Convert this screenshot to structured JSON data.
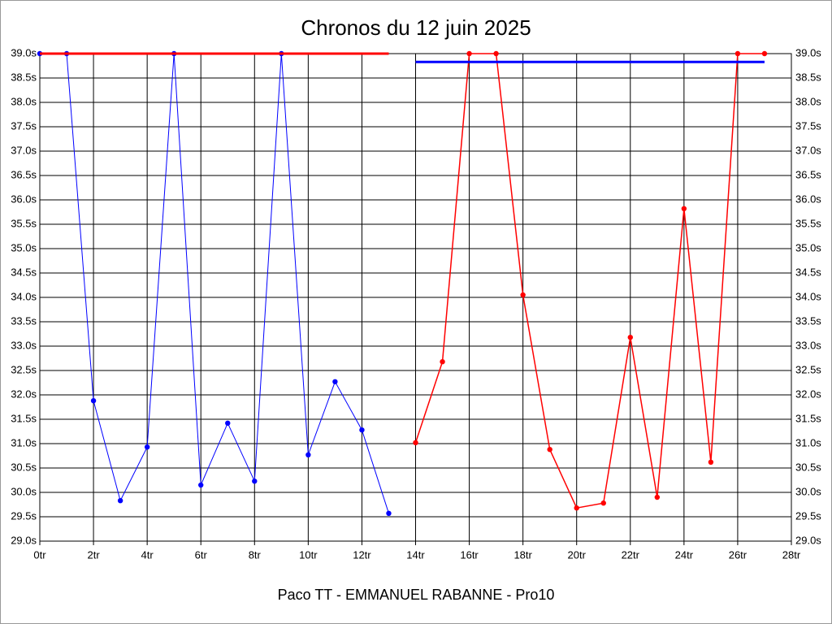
{
  "chart_data": {
    "type": "line",
    "title": "Chronos du 12 juin 2025",
    "xlabel": "Paco TT - EMMANUEL RABANNE - Pro10",
    "xlim": [
      0,
      28
    ],
    "xticks": [
      {
        "value": 0,
        "label": "0tr"
      },
      {
        "value": 2,
        "label": "2tr"
      },
      {
        "value": 4,
        "label": "4tr"
      },
      {
        "value": 6,
        "label": "6tr"
      },
      {
        "value": 8,
        "label": "8tr"
      },
      {
        "value": 10,
        "label": "10tr"
      },
      {
        "value": 12,
        "label": "12tr"
      },
      {
        "value": 14,
        "label": "14tr"
      },
      {
        "value": 16,
        "label": "16tr"
      },
      {
        "value": 18,
        "label": "18tr"
      },
      {
        "value": 20,
        "label": "20tr"
      },
      {
        "value": 22,
        "label": "22tr"
      },
      {
        "value": 24,
        "label": "24tr"
      },
      {
        "value": 26,
        "label": "26tr"
      },
      {
        "value": 28,
        "label": "28tr"
      }
    ],
    "ylim": [
      29.0,
      39.0
    ],
    "yticks": [
      {
        "value": 29.0,
        "label": "29.0s"
      },
      {
        "value": 29.5,
        "label": "29.5s"
      },
      {
        "value": 30.0,
        "label": "30.0s"
      },
      {
        "value": 30.5,
        "label": "30.5s"
      },
      {
        "value": 31.0,
        "label": "31.0s"
      },
      {
        "value": 31.5,
        "label": "31.5s"
      },
      {
        "value": 32.0,
        "label": "32.0s"
      },
      {
        "value": 32.5,
        "label": "32.5s"
      },
      {
        "value": 33.0,
        "label": "33.0s"
      },
      {
        "value": 33.5,
        "label": "33.5s"
      },
      {
        "value": 34.0,
        "label": "34.0s"
      },
      {
        "value": 34.5,
        "label": "34.5s"
      },
      {
        "value": 35.0,
        "label": "35.0s"
      },
      {
        "value": 35.5,
        "label": "35.5s"
      },
      {
        "value": 36.0,
        "label": "36.0s"
      },
      {
        "value": 36.5,
        "label": "36.5s"
      },
      {
        "value": 37.0,
        "label": "37.0s"
      },
      {
        "value": 37.5,
        "label": "37.5s"
      },
      {
        "value": 38.0,
        "label": "38.0s"
      },
      {
        "value": 38.5,
        "label": "38.5s"
      },
      {
        "value": 39.0,
        "label": "39.0s"
      }
    ],
    "grid": true,
    "series": [
      {
        "color": "#0000ff",
        "x": [
          0,
          1,
          2,
          3,
          4,
          5,
          6,
          7,
          8,
          9,
          10,
          11,
          12,
          13
        ],
        "values": [
          39.0,
          39.0,
          31.88,
          29.83,
          30.93,
          39.0,
          30.15,
          31.42,
          30.23,
          39.0,
          30.77,
          32.27,
          31.28,
          29.57
        ]
      },
      {
        "color": "#ff0000",
        "x": [
          14,
          15,
          16,
          17,
          18,
          19,
          20,
          21,
          22,
          23,
          24,
          25,
          26,
          27
        ],
        "values": [
          31.02,
          32.68,
          39.0,
          39.0,
          34.05,
          30.88,
          29.68,
          29.78,
          33.18,
          29.9,
          35.82,
          30.62,
          39.0,
          39.0
        ]
      }
    ],
    "reference_lines": [
      {
        "color": "#ff0000",
        "value": 39.0,
        "x": [
          0,
          13
        ]
      },
      {
        "color": "#0000ff",
        "value": 38.83,
        "x": [
          14,
          27
        ]
      }
    ]
  }
}
